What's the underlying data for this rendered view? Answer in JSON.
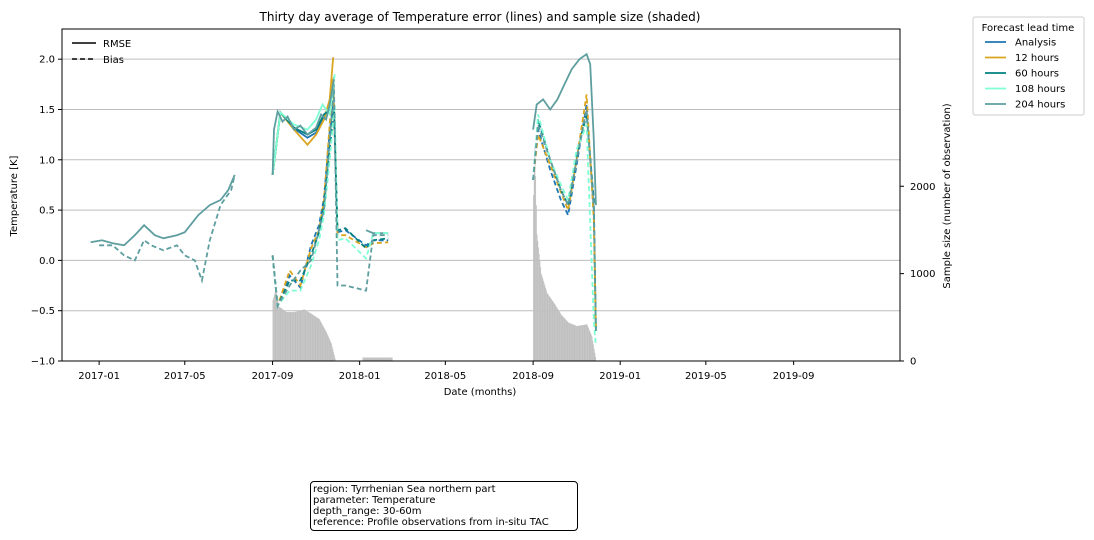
{
  "chart_data": {
    "type": "line",
    "title": "Thirty day average of Temperature error (lines) and sample size (shaded)",
    "xlabel": "Date (months)",
    "ylabel": "Temperature [K]",
    "y2label": "Sample size (number of observation)",
    "xlim": [
      "2016-11-10",
      "2020-01-28"
    ],
    "ylim": [
      -1.0,
      2.3
    ],
    "y2lim": [
      0,
      3800
    ],
    "grid": "horizontal",
    "x_ticks": [
      "2017-01",
      "2017-05",
      "2017-09",
      "2018-01",
      "2018-05",
      "2018-09",
      "2019-01",
      "2019-05",
      "2019-09"
    ],
    "y_ticks": [
      "2.0",
      "1.5",
      "1.0",
      "0.5",
      "0.0",
      "−0.5",
      "−1.0"
    ],
    "y2_ticks": [
      "0",
      "1000",
      "2000"
    ],
    "style_legend": {
      "title": "",
      "entries": [
        {
          "label": "RMSE",
          "style": "solid"
        },
        {
          "label": "Bias",
          "style": "dashed"
        }
      ],
      "placement": "upper-left"
    },
    "series_legend": {
      "title": "Forecast lead time",
      "placement": "outside-right"
    },
    "series": [
      {
        "name": "Analysis",
        "color": "#1f77b4",
        "rmse": [
          [
            "2017-09-01",
            0.85
          ],
          [
            "2017-09-12",
            1.47
          ],
          [
            "2017-10-01",
            1.31
          ],
          [
            "2017-10-20",
            1.22
          ],
          [
            "2017-11-01",
            1.27
          ],
          [
            "2017-11-12",
            1.42
          ],
          [
            "2017-11-20",
            1.55
          ],
          [
            "2017-11-26",
            1.82
          ]
        ],
        "bias": [
          [
            "2017-09-01",
            0.05
          ],
          [
            "2017-09-08",
            -0.45
          ],
          [
            "2017-09-25",
            -0.15
          ],
          [
            "2017-10-10",
            -0.27
          ],
          [
            "2017-10-25",
            0.15
          ],
          [
            "2017-11-05",
            0.35
          ],
          [
            "2017-11-12",
            0.62
          ],
          [
            "2017-11-20",
            1.28
          ],
          [
            "2017-11-26",
            1.6
          ],
          [
            "2017-12-01",
            0.28
          ],
          [
            "2017-12-12",
            0.3
          ],
          [
            "2018-01-10",
            0.15
          ],
          [
            "2018-01-20",
            0.2
          ],
          [
            "2018-02-10",
            0.2
          ],
          [
            "2018-09-01",
            0.8
          ],
          [
            "2018-09-08",
            1.3
          ],
          [
            "2018-09-25",
            0.9
          ],
          [
            "2018-10-10",
            0.6
          ],
          [
            "2018-10-20",
            0.45
          ],
          [
            "2018-11-01",
            0.95
          ],
          [
            "2018-11-15",
            1.55
          ],
          [
            "2018-11-25",
            0.5
          ],
          [
            "2018-11-28",
            -0.7
          ]
        ]
      },
      {
        "name": "12 hours",
        "color": "#daa520",
        "rmse": [
          [
            "2017-09-01",
            0.85
          ],
          [
            "2017-09-12",
            1.47
          ],
          [
            "2017-10-01",
            1.3
          ],
          [
            "2017-10-20",
            1.15
          ],
          [
            "2017-11-01",
            1.25
          ],
          [
            "2017-11-12",
            1.4
          ],
          [
            "2017-11-20",
            1.6
          ],
          [
            "2017-11-25",
            2.02
          ]
        ],
        "bias": [
          [
            "2017-09-01",
            0.05
          ],
          [
            "2017-09-08",
            -0.45
          ],
          [
            "2017-09-25",
            -0.1
          ],
          [
            "2017-10-10",
            -0.25
          ],
          [
            "2017-10-25",
            0.12
          ],
          [
            "2017-11-05",
            0.3
          ],
          [
            "2017-11-12",
            0.6
          ],
          [
            "2017-11-20",
            1.35
          ],
          [
            "2017-11-25",
            1.82
          ],
          [
            "2017-12-01",
            0.25
          ],
          [
            "2017-12-12",
            0.25
          ],
          [
            "2018-01-10",
            0.13
          ],
          [
            "2018-01-20",
            0.17
          ],
          [
            "2018-02-10",
            0.18
          ],
          [
            "2018-09-01",
            0.8
          ],
          [
            "2018-09-08",
            1.25
          ],
          [
            "2018-09-25",
            0.95
          ],
          [
            "2018-10-10",
            0.68
          ],
          [
            "2018-10-20",
            0.5
          ],
          [
            "2018-11-01",
            1.0
          ],
          [
            "2018-11-15",
            1.65
          ],
          [
            "2018-11-25",
            0.4
          ],
          [
            "2018-11-28",
            -0.7
          ]
        ]
      },
      {
        "name": "60 hours",
        "color": "#008080",
        "rmse": [
          [
            "2017-09-01",
            0.85
          ],
          [
            "2017-09-12",
            1.47
          ],
          [
            "2017-10-01",
            1.32
          ],
          [
            "2017-10-20",
            1.25
          ],
          [
            "2017-11-01",
            1.3
          ],
          [
            "2017-11-12",
            1.45
          ],
          [
            "2017-11-20",
            1.5
          ],
          [
            "2017-11-26",
            1.75
          ]
        ],
        "bias": [
          [
            "2017-09-01",
            0.05
          ],
          [
            "2017-09-08",
            -0.45
          ],
          [
            "2017-09-25",
            -0.2
          ],
          [
            "2017-10-10",
            -0.2
          ],
          [
            "2017-10-25",
            0.05
          ],
          [
            "2017-11-05",
            0.28
          ],
          [
            "2017-11-12",
            0.55
          ],
          [
            "2017-11-20",
            1.1
          ],
          [
            "2017-11-26",
            1.5
          ],
          [
            "2017-12-01",
            0.3
          ],
          [
            "2017-12-12",
            0.32
          ],
          [
            "2018-01-10",
            0.12
          ],
          [
            "2018-01-20",
            0.2
          ],
          [
            "2018-02-10",
            0.22
          ],
          [
            "2018-09-01",
            0.8
          ],
          [
            "2018-09-08",
            1.4
          ],
          [
            "2018-09-25",
            1.0
          ],
          [
            "2018-10-10",
            0.7
          ],
          [
            "2018-10-20",
            0.55
          ],
          [
            "2018-11-01",
            1.05
          ],
          [
            "2018-11-15",
            1.45
          ],
          [
            "2018-11-25",
            0.6
          ],
          [
            "2018-11-28",
            -0.7
          ]
        ]
      },
      {
        "name": "108 hours",
        "color": "#7fffd4",
        "rmse": [
          [
            "2017-09-01",
            0.85
          ],
          [
            "2017-09-12",
            1.47
          ],
          [
            "2017-10-01",
            1.35
          ],
          [
            "2017-10-20",
            1.3
          ],
          [
            "2017-11-01",
            1.4
          ],
          [
            "2017-11-10",
            1.55
          ],
          [
            "2017-11-20",
            1.45
          ],
          [
            "2017-11-27",
            1.85
          ]
        ],
        "bias": [
          [
            "2017-09-01",
            0.05
          ],
          [
            "2017-09-08",
            -0.45
          ],
          [
            "2017-09-25",
            -0.3
          ],
          [
            "2017-10-10",
            -0.3
          ],
          [
            "2017-10-25",
            -0.05
          ],
          [
            "2017-11-05",
            0.2
          ],
          [
            "2017-11-12",
            0.45
          ],
          [
            "2017-11-20",
            1.0
          ],
          [
            "2017-11-27",
            1.55
          ],
          [
            "2017-12-01",
            0.2
          ],
          [
            "2017-12-12",
            0.22
          ],
          [
            "2018-01-10",
            0.02
          ],
          [
            "2018-01-20",
            0.27
          ],
          [
            "2018-02-10",
            0.27
          ],
          [
            "2018-09-01",
            0.8
          ],
          [
            "2018-09-08",
            1.45
          ],
          [
            "2018-09-25",
            1.0
          ],
          [
            "2018-10-10",
            0.75
          ],
          [
            "2018-10-20",
            0.6
          ],
          [
            "2018-11-01",
            1.1
          ],
          [
            "2018-11-15",
            1.35
          ],
          [
            "2018-11-25",
            -0.6
          ],
          [
            "2018-11-28",
            -0.85
          ]
        ]
      },
      {
        "name": "204 hours",
        "color": "#5f9ea0",
        "rmse": [
          [
            "2017-09-01",
            0.85
          ],
          [
            "2017-09-03",
            1.3
          ],
          [
            "2017-09-08",
            1.48
          ],
          [
            "2017-09-15",
            1.38
          ],
          [
            "2017-09-22",
            1.43
          ],
          [
            "2017-10-01",
            1.3
          ],
          [
            "2017-10-10",
            1.34
          ],
          [
            "2017-10-20",
            1.25
          ],
          [
            "2017-11-01",
            1.32
          ],
          [
            "2017-11-08",
            1.45
          ],
          [
            "2017-11-15",
            1.4
          ],
          [
            "2017-11-20",
            1.55
          ],
          [
            "2017-11-26",
            1.8
          ],
          [
            "2018-09-01",
            1.3
          ],
          [
            "2018-09-06",
            1.55
          ],
          [
            "2018-09-15",
            1.6
          ],
          [
            "2018-09-25",
            1.5
          ],
          [
            "2018-10-05",
            1.6
          ],
          [
            "2018-10-15",
            1.75
          ],
          [
            "2018-10-25",
            1.9
          ],
          [
            "2018-11-05",
            2.0
          ],
          [
            "2018-11-15",
            2.05
          ],
          [
            "2018-11-20",
            1.95
          ],
          [
            "2018-11-25",
            1.2
          ],
          [
            "2018-11-28",
            0.55
          ]
        ],
        "bias": [
          [
            "2017-01-01",
            0.15
          ],
          [
            "2017-01-20",
            0.15
          ],
          [
            "2017-02-05",
            0.05
          ],
          [
            "2017-02-20",
            0.0
          ],
          [
            "2017-03-05",
            0.2
          ],
          [
            "2017-03-15",
            0.15
          ],
          [
            "2017-04-01",
            0.1
          ],
          [
            "2017-04-20",
            0.15
          ],
          [
            "2017-05-01",
            0.05
          ],
          [
            "2017-05-15",
            0.0
          ],
          [
            "2017-05-25",
            -0.2
          ],
          [
            "2017-06-05",
            0.2
          ],
          [
            "2017-06-20",
            0.55
          ],
          [
            "2017-07-05",
            0.7
          ],
          [
            "2017-07-10",
            0.85
          ],
          [
            "2017-09-01",
            0.05
          ],
          [
            "2017-09-08",
            -0.45
          ],
          [
            "2017-09-25",
            -0.25
          ],
          [
            "2017-10-10",
            -0.1
          ],
          [
            "2017-10-25",
            0.0
          ],
          [
            "2017-11-05",
            0.3
          ],
          [
            "2017-11-12",
            0.5
          ],
          [
            "2017-11-20",
            1.2
          ],
          [
            "2017-11-26",
            1.7
          ],
          [
            "2017-12-01",
            -0.25
          ],
          [
            "2017-12-12",
            -0.25
          ],
          [
            "2018-01-10",
            -0.3
          ],
          [
            "2018-01-20",
            0.25
          ],
          [
            "2018-02-10",
            0.25
          ],
          [
            "2018-09-01",
            0.8
          ],
          [
            "2018-09-08",
            1.35
          ],
          [
            "2018-09-25",
            1.0
          ],
          [
            "2018-10-10",
            0.7
          ],
          [
            "2018-10-20",
            0.55
          ],
          [
            "2018-11-01",
            1.0
          ],
          [
            "2018-11-15",
            1.5
          ],
          [
            "2018-11-25",
            0.5
          ],
          [
            "2018-11-28",
            -0.7
          ]
        ]
      }
    ],
    "analysis_rmse_2017": [
      [
        "2016-12-20",
        0.18
      ],
      [
        "2017-01-05",
        0.2
      ],
      [
        "2017-01-20",
        0.17
      ],
      [
        "2017-02-05",
        0.15
      ],
      [
        "2017-02-20",
        0.25
      ],
      [
        "2017-03-05",
        0.35
      ],
      [
        "2017-03-20",
        0.25
      ],
      [
        "2017-04-01",
        0.22
      ],
      [
        "2017-04-20",
        0.25
      ],
      [
        "2017-05-01",
        0.28
      ],
      [
        "2017-05-20",
        0.45
      ],
      [
        "2017-06-05",
        0.55
      ],
      [
        "2017-06-20",
        0.6
      ],
      [
        "2017-07-01",
        0.7
      ],
      [
        "2017-07-10",
        0.85
      ]
    ],
    "rmse_2018_winter": [
      [
        "2018-01-10",
        0.3
      ],
      [
        "2018-01-20",
        0.27
      ],
      [
        "2018-02-10",
        0.27
      ]
    ],
    "sample_size": [
      [
        "2017-09-01",
        700
      ],
      [
        "2017-09-05",
        820
      ],
      [
        "2017-09-10",
        620
      ],
      [
        "2017-09-20",
        560
      ],
      [
        "2017-10-01",
        560
      ],
      [
        "2017-10-15",
        590
      ],
      [
        "2017-10-25",
        540
      ],
      [
        "2017-11-05",
        480
      ],
      [
        "2017-11-15",
        330
      ],
      [
        "2017-11-22",
        200
      ],
      [
        "2017-11-28",
        0
      ],
      [
        "2018-01-05",
        40
      ],
      [
        "2018-02-15",
        40
      ],
      [
        "2018-02-16",
        0
      ],
      [
        "2018-09-01",
        1900
      ],
      [
        "2018-09-03",
        2450
      ],
      [
        "2018-09-06",
        1450
      ],
      [
        "2018-09-12",
        1000
      ],
      [
        "2018-09-20",
        780
      ],
      [
        "2018-10-01",
        650
      ],
      [
        "2018-10-10",
        530
      ],
      [
        "2018-10-20",
        440
      ],
      [
        "2018-11-01",
        400
      ],
      [
        "2018-11-15",
        420
      ],
      [
        "2018-11-22",
        280
      ],
      [
        "2018-11-28",
        0
      ]
    ]
  },
  "infobox": {
    "region": "region: Tyrrhenian Sea northern part",
    "parameter": "parameter: Temperature",
    "depth_range": "depth_range: 30-60m",
    "reference": "reference: Profile observations from in-situ TAC"
  }
}
